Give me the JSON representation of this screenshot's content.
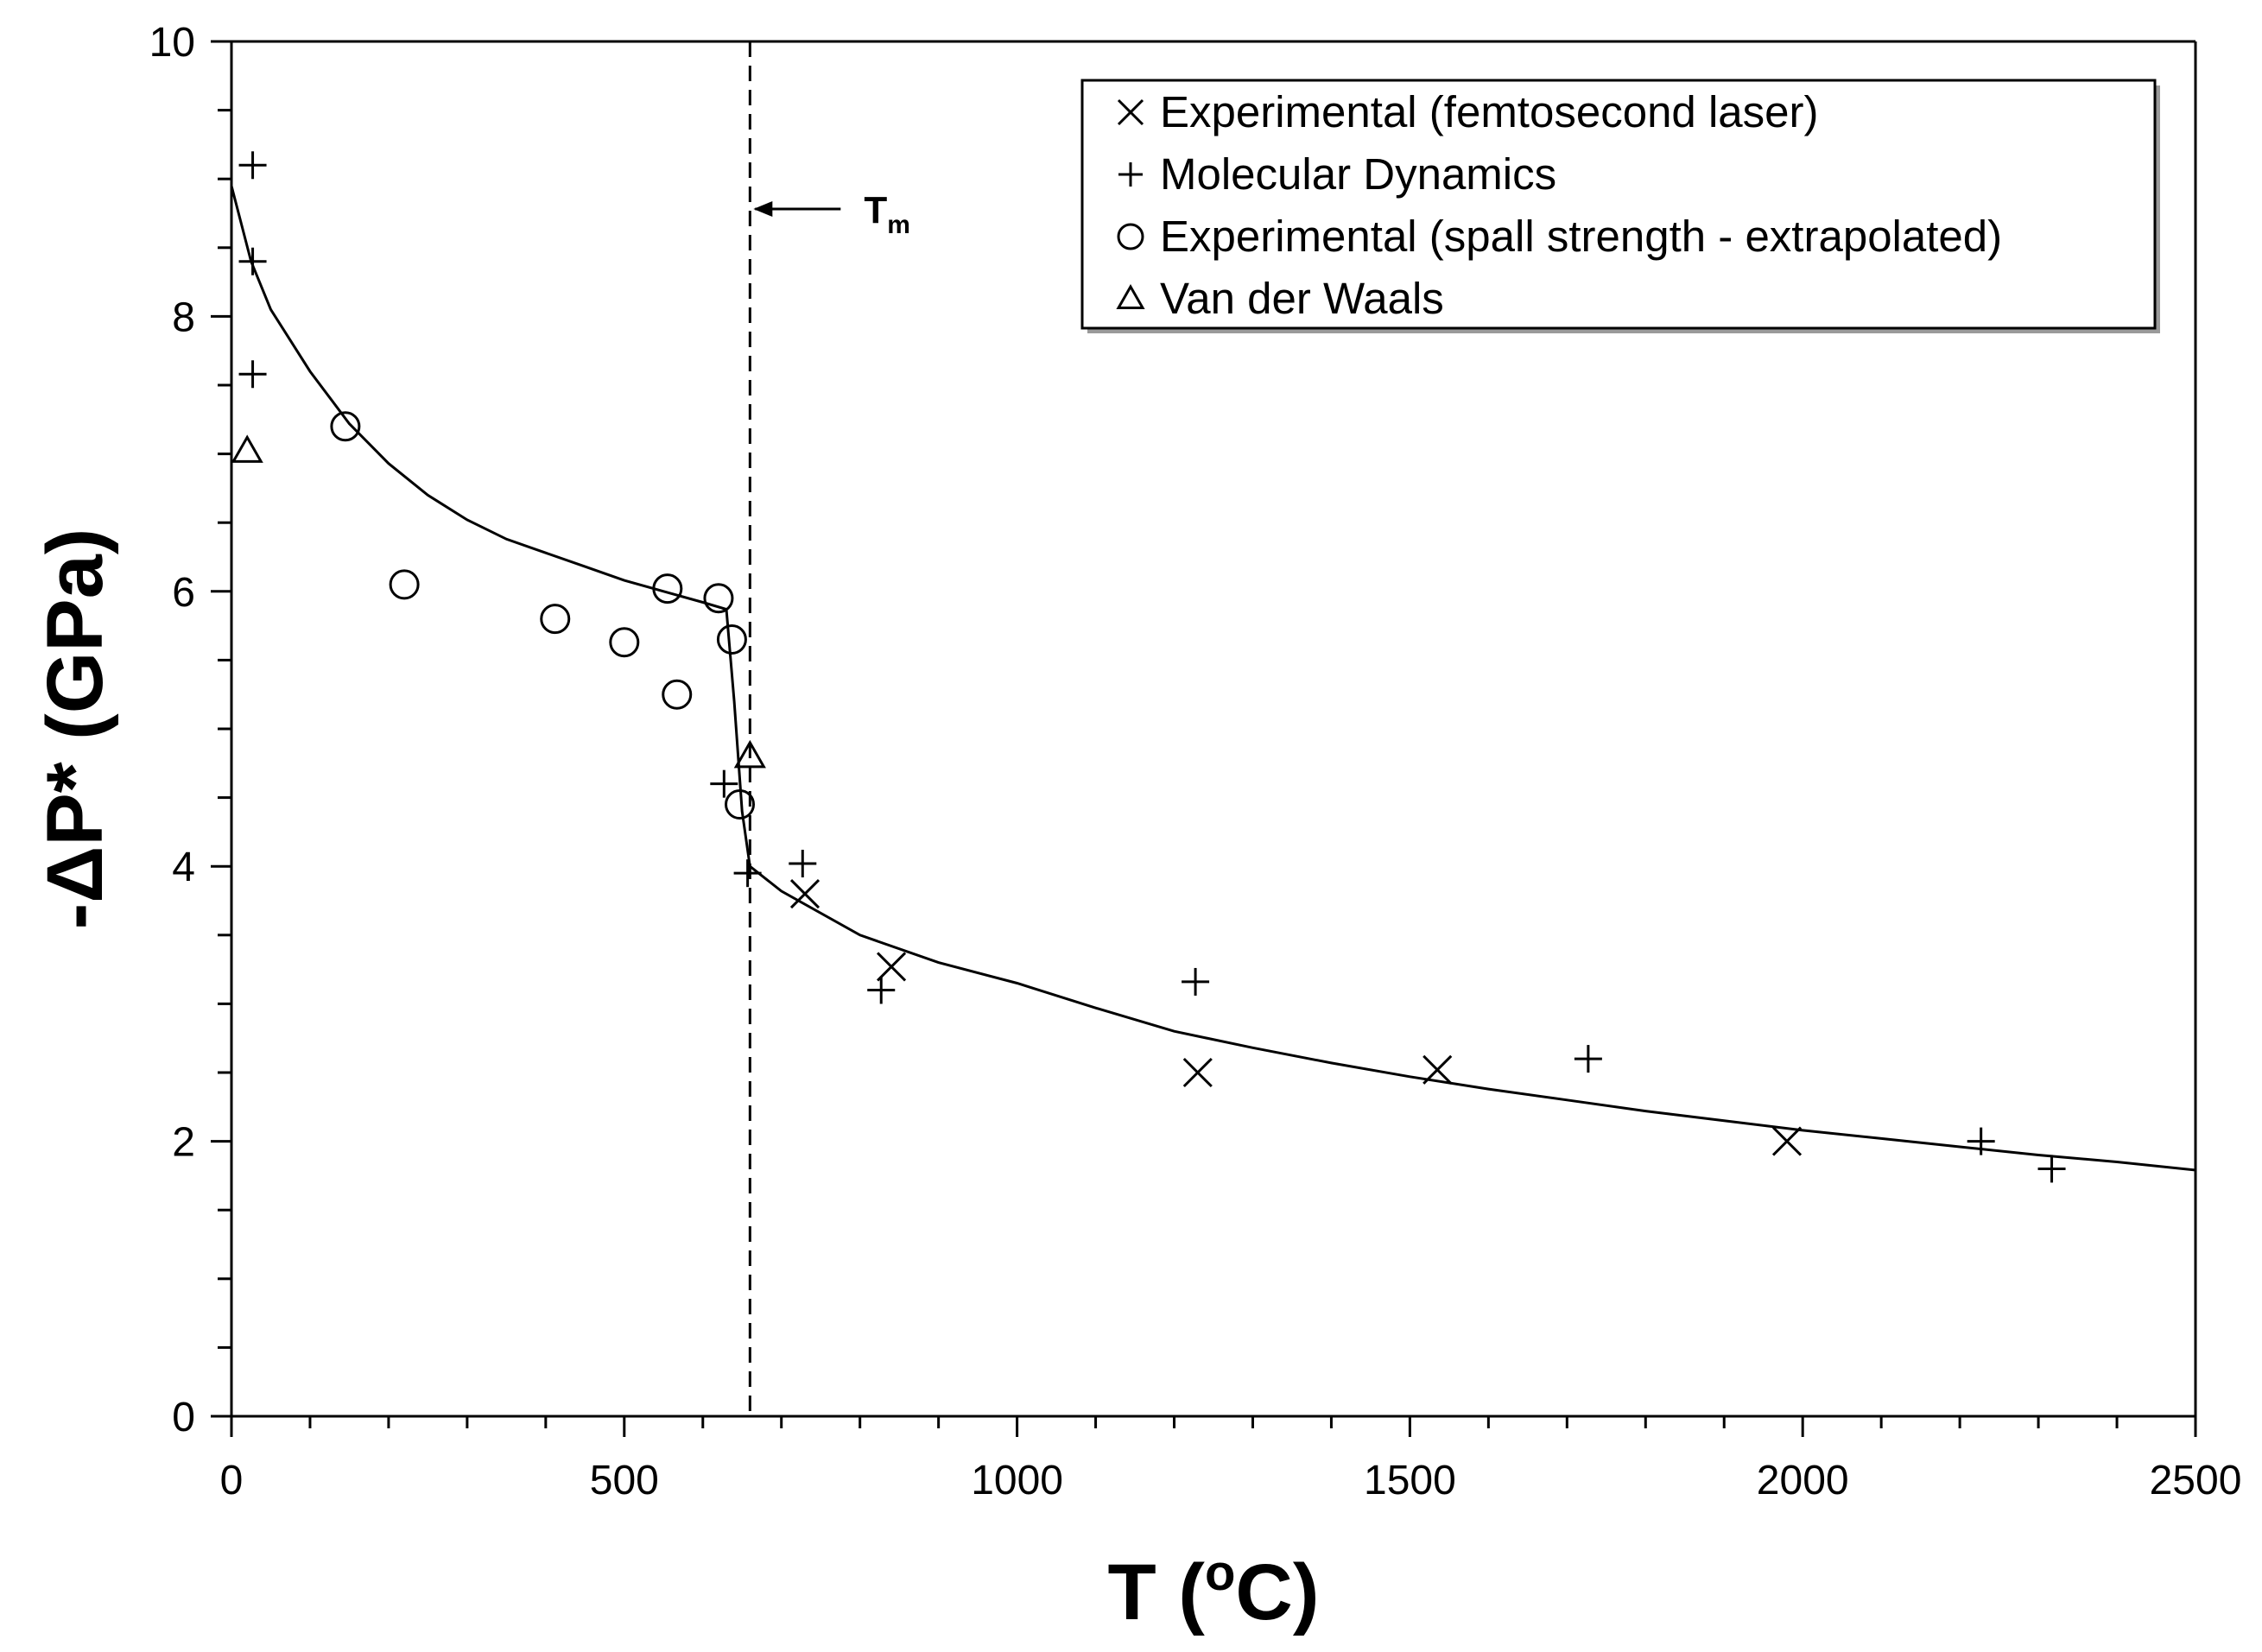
{
  "chart_data": {
    "type": "scatter",
    "xlabel": "T (",
    "xlabel_sup": "o",
    "xlabel_tail": "C)",
    "ylabel": "-ΔP* (GPa)",
    "xlim": [
      0,
      2500
    ],
    "ylim": [
      0,
      10
    ],
    "x_ticks": [
      "0",
      "500",
      "1000",
      "1500",
      "2000",
      "2500"
    ],
    "y_ticks": [
      "0",
      "2",
      "4",
      "6",
      "8",
      "10"
    ],
    "grid": false,
    "legend_position": "top-right",
    "annotation": {
      "label": "T",
      "subscript": "m",
      "x": 660
    },
    "series": [
      {
        "name": "Experimental (femtosecond laser)",
        "marker": "x",
        "points": [
          [
            730,
            3.8
          ],
          [
            840,
            3.27
          ],
          [
            1230,
            2.5
          ],
          [
            1535,
            2.52
          ],
          [
            1980,
            2.0
          ]
        ]
      },
      {
        "name": "Molecular Dynamics",
        "marker": "+",
        "points": [
          [
            27,
            9.1
          ],
          [
            27,
            8.4
          ],
          [
            27,
            7.58
          ],
          [
            627,
            4.6
          ],
          [
            657,
            3.95
          ],
          [
            727,
            4.02
          ],
          [
            827,
            3.1
          ],
          [
            1227,
            3.16
          ],
          [
            1727,
            2.6
          ],
          [
            2227,
            2.0
          ],
          [
            2317,
            1.8
          ]
        ]
      },
      {
        "name": "Experimental (spall strength - extrapolated)",
        "marker": "o",
        "points": [
          [
            145,
            7.2
          ],
          [
            220,
            6.05
          ],
          [
            412,
            5.8
          ],
          [
            500,
            5.63
          ],
          [
            555,
            6.02
          ],
          [
            567,
            5.25
          ],
          [
            620,
            5.95
          ],
          [
            637,
            5.65
          ],
          [
            647,
            4.45
          ]
        ]
      },
      {
        "name": "Van der Waals",
        "marker": "triangle",
        "points": [
          [
            20,
            7.02
          ],
          [
            660,
            4.8
          ]
        ]
      }
    ],
    "fit_curve": {
      "name": "fit",
      "points": [
        [
          0,
          8.95
        ],
        [
          25,
          8.4
        ],
        [
          50,
          8.05
        ],
        [
          100,
          7.6
        ],
        [
          150,
          7.22
        ],
        [
          200,
          6.93
        ],
        [
          250,
          6.7
        ],
        [
          300,
          6.52
        ],
        [
          350,
          6.38
        ],
        [
          400,
          6.28
        ],
        [
          450,
          6.18
        ],
        [
          500,
          6.08
        ],
        [
          550,
          6.0
        ],
        [
          600,
          5.92
        ],
        [
          630,
          5.87
        ],
        [
          640,
          5.2
        ],
        [
          650,
          4.4
        ],
        [
          660,
          4.0
        ],
        [
          700,
          3.82
        ],
        [
          800,
          3.5
        ],
        [
          900,
          3.3
        ],
        [
          1000,
          3.15
        ],
        [
          1100,
          2.97
        ],
        [
          1200,
          2.8
        ],
        [
          1300,
          2.68
        ],
        [
          1400,
          2.57
        ],
        [
          1500,
          2.47
        ],
        [
          1600,
          2.38
        ],
        [
          1700,
          2.3
        ],
        [
          1800,
          2.22
        ],
        [
          1900,
          2.15
        ],
        [
          2000,
          2.08
        ],
        [
          2100,
          2.02
        ],
        [
          2200,
          1.96
        ],
        [
          2300,
          1.9
        ],
        [
          2400,
          1.85
        ],
        [
          2500,
          1.79
        ]
      ]
    }
  }
}
